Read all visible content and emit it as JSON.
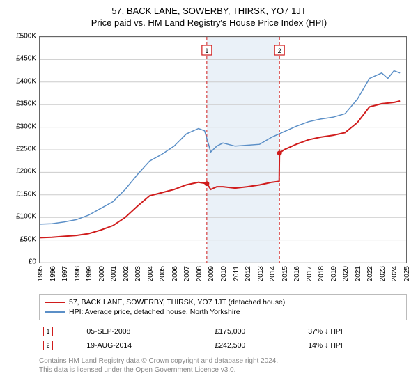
{
  "title": "57, BACK LANE, SOWERBY, THIRSK, YO7 1JT",
  "subtitle": "Price paid vs. HM Land Registry's House Price Index (HPI)",
  "chart": {
    "type": "line",
    "background_color": "#ffffff",
    "border_color": "#666666",
    "grid_color": "#cccccc",
    "xlim": [
      1995,
      2025
    ],
    "ylim": [
      0,
      500000
    ],
    "ytick_step": 50000,
    "yticks": [
      "£0",
      "£50K",
      "£100K",
      "£150K",
      "£200K",
      "£250K",
      "£300K",
      "£350K",
      "£400K",
      "£450K",
      "£500K"
    ],
    "xticks": [
      "1995",
      "1996",
      "1997",
      "1998",
      "1999",
      "2000",
      "2001",
      "2002",
      "2003",
      "2004",
      "2005",
      "2006",
      "2007",
      "2008",
      "2009",
      "2010",
      "2011",
      "2012",
      "2013",
      "2014",
      "2015",
      "2016",
      "2017",
      "2018",
      "2019",
      "2020",
      "2021",
      "2022",
      "2023",
      "2024",
      "2025"
    ],
    "shaded_region": {
      "x_start": 2008.68,
      "x_end": 2014.63,
      "fill": "#d8e6f2",
      "opacity": 0.55
    },
    "vlines": [
      {
        "x": 2008.68,
        "color": "#d01c1c",
        "dash": "4,3",
        "width": 1
      },
      {
        "x": 2014.63,
        "color": "#d01c1c",
        "dash": "4,3",
        "width": 1
      }
    ],
    "markers": [
      {
        "id": "1",
        "x": 2008.68,
        "y": 175000,
        "box_border": "#d01c1c",
        "label_y_top": 12
      },
      {
        "id": "2",
        "x": 2014.63,
        "y": 242500,
        "box_border": "#d01c1c",
        "label_y_top": 12
      }
    ],
    "series": [
      {
        "name": "property_price",
        "color": "#d01c1c",
        "width": 2,
        "points": [
          [
            1995,
            55000
          ],
          [
            1996,
            56000
          ],
          [
            1997,
            58000
          ],
          [
            1998,
            60000
          ],
          [
            1999,
            64000
          ],
          [
            2000,
            72000
          ],
          [
            2001,
            82000
          ],
          [
            2002,
            100000
          ],
          [
            2003,
            125000
          ],
          [
            2004,
            148000
          ],
          [
            2005,
            155000
          ],
          [
            2006,
            162000
          ],
          [
            2007,
            172000
          ],
          [
            2008,
            178000
          ],
          [
            2008.68,
            175000
          ],
          [
            2009,
            162000
          ],
          [
            2009.5,
            168000
          ],
          [
            2010,
            168000
          ],
          [
            2011,
            165000
          ],
          [
            2012,
            168000
          ],
          [
            2013,
            172000
          ],
          [
            2014,
            178000
          ],
          [
            2014.6,
            180000
          ],
          [
            2014.63,
            242500
          ],
          [
            2015,
            250000
          ],
          [
            2016,
            262000
          ],
          [
            2017,
            272000
          ],
          [
            2018,
            278000
          ],
          [
            2019,
            282000
          ],
          [
            2020,
            288000
          ],
          [
            2021,
            310000
          ],
          [
            2022,
            345000
          ],
          [
            2023,
            352000
          ],
          [
            2024,
            355000
          ],
          [
            2024.5,
            358000
          ]
        ]
      },
      {
        "name": "hpi",
        "color": "#5b8fc7",
        "width": 1.5,
        "points": [
          [
            1995,
            85000
          ],
          [
            1996,
            86000
          ],
          [
            1997,
            90000
          ],
          [
            1998,
            95000
          ],
          [
            1999,
            105000
          ],
          [
            2000,
            120000
          ],
          [
            2001,
            135000
          ],
          [
            2002,
            162000
          ],
          [
            2003,
            195000
          ],
          [
            2004,
            225000
          ],
          [
            2005,
            240000
          ],
          [
            2006,
            258000
          ],
          [
            2007,
            285000
          ],
          [
            2008,
            297000
          ],
          [
            2008.5,
            292000
          ],
          [
            2009,
            245000
          ],
          [
            2009.5,
            258000
          ],
          [
            2010,
            265000
          ],
          [
            2011,
            258000
          ],
          [
            2012,
            260000
          ],
          [
            2013,
            262000
          ],
          [
            2014,
            278000
          ],
          [
            2015,
            290000
          ],
          [
            2016,
            302000
          ],
          [
            2017,
            312000
          ],
          [
            2018,
            318000
          ],
          [
            2019,
            322000
          ],
          [
            2020,
            330000
          ],
          [
            2021,
            362000
          ],
          [
            2022,
            408000
          ],
          [
            2023,
            420000
          ],
          [
            2023.5,
            408000
          ],
          [
            2024,
            425000
          ],
          [
            2024.5,
            420000
          ]
        ]
      }
    ]
  },
  "legend": {
    "items": [
      {
        "color": "#d01c1c",
        "label": "57, BACK LANE, SOWERBY, THIRSK, YO7 1JT (detached house)"
      },
      {
        "color": "#5b8fc7",
        "label": "HPI: Average price, detached house, North Yorkshire"
      }
    ]
  },
  "sales": [
    {
      "marker": "1",
      "marker_border": "#d01c1c",
      "date": "05-SEP-2008",
      "price": "£175,000",
      "pct": "37%",
      "arrow": "↓",
      "vs": "HPI"
    },
    {
      "marker": "2",
      "marker_border": "#d01c1c",
      "date": "19-AUG-2014",
      "price": "£242,500",
      "pct": "14%",
      "arrow": "↓",
      "vs": "HPI"
    }
  ],
  "footnote": {
    "line1": "Contains HM Land Registry data © Crown copyright and database right 2024.",
    "line2": "This data is licensed under the Open Government Licence v3.0."
  }
}
